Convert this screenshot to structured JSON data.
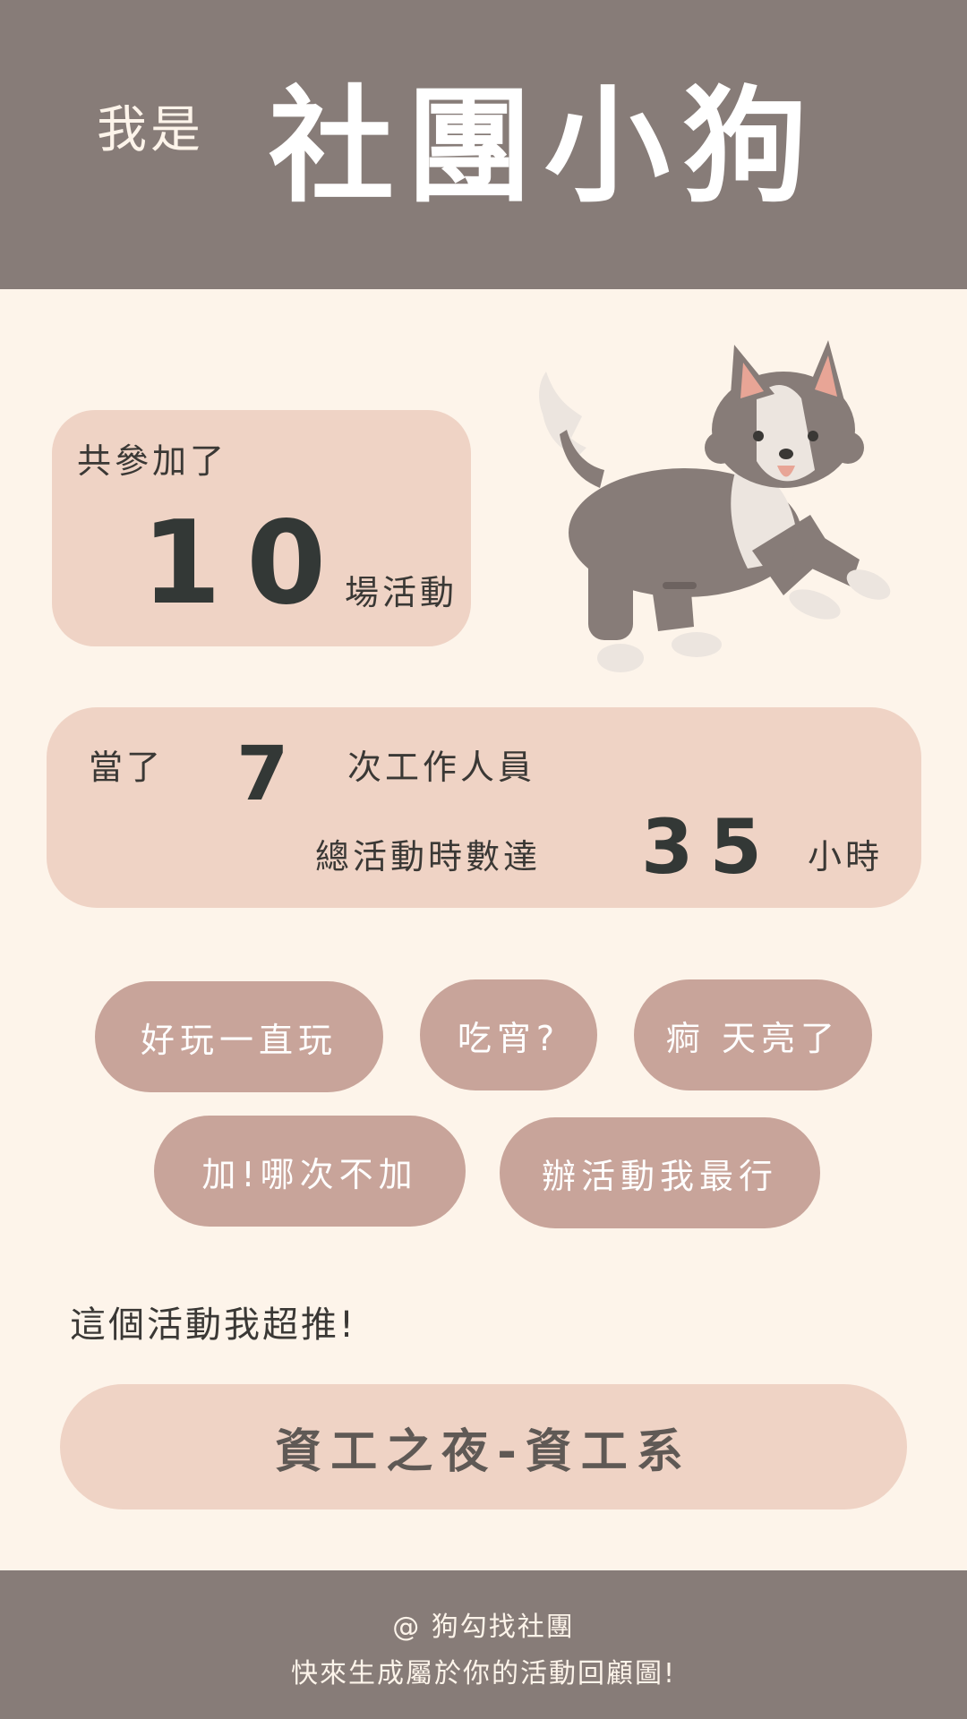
{
  "header": {
    "prefix": "我是",
    "title": "社團小狗"
  },
  "events_card": {
    "label": "共參加了",
    "count": "10",
    "unit": "場活動"
  },
  "staff_card": {
    "prefix": "當了",
    "count": "7",
    "suffix": "次工作人員",
    "hours_label": "總活動時數達",
    "hours": "35",
    "hours_unit": "小時"
  },
  "tags": [
    "好玩一直玩",
    "吃宵?",
    "痾 天亮了",
    "加!哪次不加",
    "辦活動我最行"
  ],
  "recommend": {
    "label": "這個活動我超推!",
    "name": "資工之夜-資工系"
  },
  "footer": {
    "handle": "@ 狗勾找社團",
    "tagline": "快來生成屬於你的活動回顧圖!"
  },
  "colors": {
    "header_bg": "#877c78",
    "page_bg": "#fdf4ea",
    "card_bg": "#efd3c5",
    "tag_bg": "#c8a49a"
  },
  "illustration": "dog-illustration"
}
